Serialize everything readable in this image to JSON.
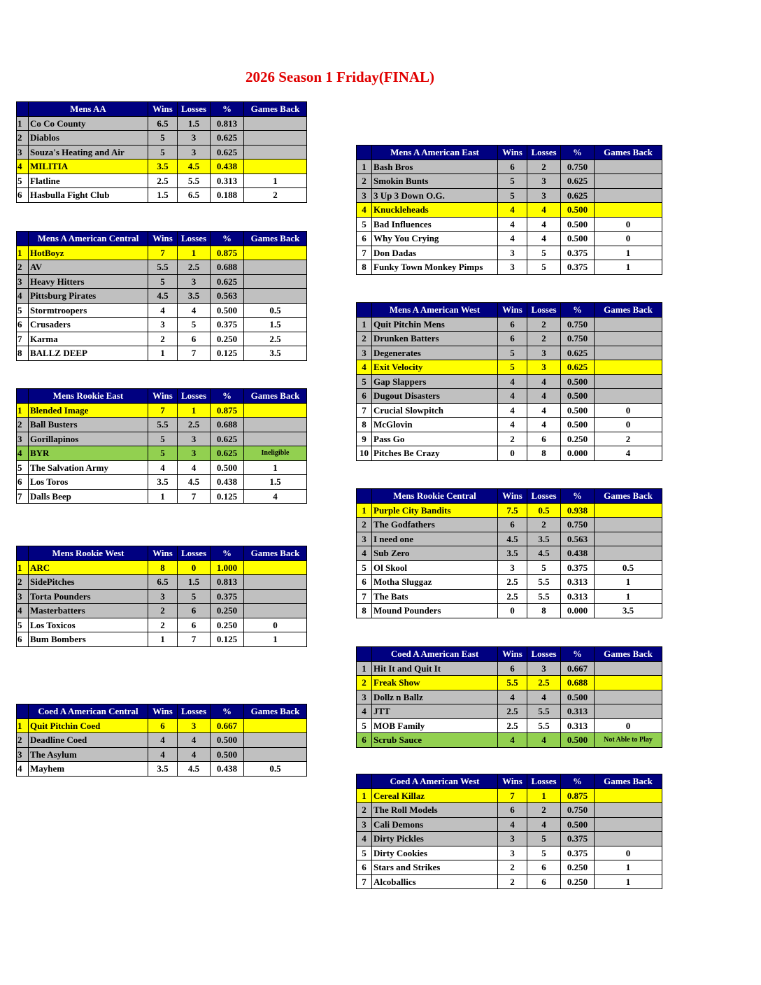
{
  "title": "2026 Season 1 Friday(FINAL)",
  "colors": {
    "header": "#000080",
    "gray": "#c0c0c0",
    "yellow": "#ffff00",
    "green": "#92d050",
    "title": "#e00000"
  },
  "columns": {
    "wins": "Wins",
    "losses": "Losses",
    "pct": "%",
    "gb": "Games Back"
  },
  "tables": [
    {
      "side": "L",
      "name": "Mens AA",
      "rows": [
        [
          "1",
          "Co Co County",
          "6.5",
          "1.5",
          "0.813",
          "",
          "g"
        ],
        [
          "2",
          "Diablos",
          "5",
          "3",
          "0.625",
          "",
          "g"
        ],
        [
          "3",
          "Souza's Heating and Air",
          "5",
          "3",
          "0.625",
          "",
          "g"
        ],
        [
          "4",
          "MILITIA",
          "3.5",
          "4.5",
          "0.438",
          "",
          "y"
        ],
        [
          "5",
          "Flatline",
          "2.5",
          "5.5",
          "0.313",
          "1",
          "w"
        ],
        [
          "6",
          "Hasbulla Fight Club",
          "1.5",
          "6.5",
          "0.188",
          "2",
          "w"
        ]
      ]
    },
    {
      "side": "L",
      "name": "Mens A American Central",
      "rows": [
        [
          "1",
          "HotBoyz",
          "7",
          "1",
          "0.875",
          "",
          "y"
        ],
        [
          "2",
          "AV",
          "5.5",
          "2.5",
          "0.688",
          "",
          "g"
        ],
        [
          "3",
          "Heavy Hitters",
          "5",
          "3",
          "0.625",
          "",
          "g"
        ],
        [
          "4",
          "Pittsburg Pirates",
          "4.5",
          "3.5",
          "0.563",
          "",
          "g"
        ],
        [
          "5",
          "Stormtroopers",
          "4",
          "4",
          "0.500",
          "0.5",
          "w"
        ],
        [
          "6",
          "Crusaders",
          "3",
          "5",
          "0.375",
          "1.5",
          "w"
        ],
        [
          "7",
          "Karma",
          "2",
          "6",
          "0.250",
          "2.5",
          "w"
        ],
        [
          "8",
          "BALLZ DEEP",
          "1",
          "7",
          "0.125",
          "3.5",
          "w"
        ]
      ]
    },
    {
      "side": "L",
      "name": "Mens Rookie East",
      "rows": [
        [
          "1",
          "Blended Image",
          "7",
          "1",
          "0.875",
          "",
          "y"
        ],
        [
          "2",
          "Ball Busters",
          "5.5",
          "2.5",
          "0.688",
          "",
          "g"
        ],
        [
          "3",
          "Gorillapinos",
          "5",
          "3",
          "0.625",
          "",
          "g"
        ],
        [
          "4",
          "BYR",
          "5",
          "3",
          "0.625",
          "Ineligible",
          "n"
        ],
        [
          "5",
          "The Salvation Army",
          "4",
          "4",
          "0.500",
          "1",
          "w"
        ],
        [
          "6",
          "Los Toros",
          "3.5",
          "4.5",
          "0.438",
          "1.5",
          "w"
        ],
        [
          "7",
          "Dalls Beep",
          "1",
          "7",
          "0.125",
          "4",
          "w"
        ]
      ]
    },
    {
      "side": "L",
      "name": "Mens Rookie West",
      "rows": [
        [
          "1",
          "ARC",
          "8",
          "0",
          "1.000",
          "",
          "y"
        ],
        [
          "2",
          "SidePitches",
          "6.5",
          "1.5",
          "0.813",
          "",
          "g"
        ],
        [
          "3",
          "Torta Pounders",
          "3",
          "5",
          "0.375",
          "",
          "g"
        ],
        [
          "4",
          "Masterbatters",
          "2",
          "6",
          "0.250",
          "",
          "g"
        ],
        [
          "5",
          "Los Toxicos",
          "2",
          "6",
          "0.250",
          "0",
          "w"
        ],
        [
          "6",
          "Bum Bombers",
          "1",
          "7",
          "0.125",
          "1",
          "w"
        ]
      ]
    },
    {
      "side": "L",
      "name": "Coed A American Central",
      "rows": [
        [
          "1",
          "Quit Pitchin Coed",
          "6",
          "3",
          "0.667",
          "",
          "y"
        ],
        [
          "2",
          "Deadline Coed",
          "4",
          "4",
          "0.500",
          "",
          "g"
        ],
        [
          "3",
          "The Asylum",
          "4",
          "4",
          "0.500",
          "",
          "g"
        ],
        [
          "4",
          "Mayhem",
          "3.5",
          "4.5",
          "0.438",
          "0.5",
          "w"
        ]
      ]
    },
    {
      "side": "R",
      "name": "Mens A American East",
      "rows": [
        [
          "1",
          "Bash Bros",
          "6",
          "2",
          "0.750",
          "",
          "g"
        ],
        [
          "2",
          "Smokin Bunts",
          "5",
          "3",
          "0.625",
          "",
          "g"
        ],
        [
          "3",
          "3 Up 3 Down O.G.",
          "5",
          "3",
          "0.625",
          "",
          "g"
        ],
        [
          "4",
          "Knuckleheads",
          "4",
          "4",
          "0.500",
          "",
          "y"
        ],
        [
          "5",
          "Bad Influences",
          "4",
          "4",
          "0.500",
          "0",
          "w"
        ],
        [
          "6",
          "Why You Crying",
          "4",
          "4",
          "0.500",
          "0",
          "w"
        ],
        [
          "7",
          "Don Dadas",
          "3",
          "5",
          "0.375",
          "1",
          "w"
        ],
        [
          "8",
          "Funky Town Monkey Pimps",
          "3",
          "5",
          "0.375",
          "1",
          "w"
        ]
      ]
    },
    {
      "side": "R",
      "name": "Mens A American West",
      "rows": [
        [
          "1",
          "Quit Pitchin Mens",
          "6",
          "2",
          "0.750",
          "",
          "g"
        ],
        [
          "2",
          "Drunken Batters",
          "6",
          "2",
          "0.750",
          "",
          "g"
        ],
        [
          "3",
          "Degenerates",
          "5",
          "3",
          "0.625",
          "",
          "g"
        ],
        [
          "4",
          "Exit Velocity",
          "5",
          "3",
          "0.625",
          "",
          "y"
        ],
        [
          "5",
          "Gap Slappers",
          "4",
          "4",
          "0.500",
          "",
          "g"
        ],
        [
          "6",
          "Dugout Disasters",
          "4",
          "4",
          "0.500",
          "",
          "g"
        ],
        [
          "7",
          "Crucial Slowpitch",
          "4",
          "4",
          "0.500",
          "0",
          "w"
        ],
        [
          "8",
          "McGlovin",
          "4",
          "4",
          "0.500",
          "0",
          "w"
        ],
        [
          "9",
          "Pass Go",
          "2",
          "6",
          "0.250",
          "2",
          "w"
        ],
        [
          "10",
          "Pitches Be Crazy",
          "0",
          "8",
          "0.000",
          "4",
          "w"
        ]
      ]
    },
    {
      "side": "R",
      "name": "Mens Rookie Central",
      "rows": [
        [
          "1",
          "Purple City Bandits",
          "7.5",
          "0.5",
          "0.938",
          "",
          "y"
        ],
        [
          "2",
          "The Godfathers",
          "6",
          "2",
          "0.750",
          "",
          "g"
        ],
        [
          "3",
          "I need one",
          "4.5",
          "3.5",
          "0.563",
          "",
          "g"
        ],
        [
          "4",
          "Sub Zero",
          "3.5",
          "4.5",
          "0.438",
          "",
          "g"
        ],
        [
          "5",
          "Ol Skool",
          "3",
          "5",
          "0.375",
          "0.5",
          "w"
        ],
        [
          "6",
          "Motha Sluggaz",
          "2.5",
          "5.5",
          "0.313",
          "1",
          "w"
        ],
        [
          "7",
          "The Bats",
          "2.5",
          "5.5",
          "0.313",
          "1",
          "w"
        ],
        [
          "8",
          "Mound Pounders",
          "0",
          "8",
          "0.000",
          "3.5",
          "w"
        ]
      ]
    },
    {
      "side": "R",
      "name": "Coed A American East",
      "rows": [
        [
          "1",
          "Hit It and Quit It",
          "6",
          "3",
          "0.667",
          "",
          "g"
        ],
        [
          "2",
          "Freak Show",
          "5.5",
          "2.5",
          "0.688",
          "",
          "y"
        ],
        [
          "3",
          "Dollz n Ballz",
          "4",
          "4",
          "0.500",
          "",
          "g"
        ],
        [
          "4",
          "JTT",
          "2.5",
          "5.5",
          "0.313",
          "",
          "g"
        ],
        [
          "5",
          "MOB Family",
          "2.5",
          "5.5",
          "0.313",
          "0",
          "w"
        ],
        [
          "6",
          "Scrub Sauce",
          "4",
          "4",
          "0.500",
          "Not Able to Play",
          "n"
        ]
      ]
    },
    {
      "side": "R",
      "name": "Coed A American West",
      "rows": [
        [
          "1",
          "Cereal Killaz",
          "7",
          "1",
          "0.875",
          "",
          "y"
        ],
        [
          "2",
          "The Roll Models",
          "6",
          "2",
          "0.750",
          "",
          "g"
        ],
        [
          "3",
          "Cali Demons",
          "4",
          "4",
          "0.500",
          "",
          "g"
        ],
        [
          "4",
          "Dirty Pickles",
          "3",
          "5",
          "0.375",
          "",
          "g"
        ],
        [
          "5",
          "Dirty Cookies",
          "3",
          "5",
          "0.375",
          "0",
          "w"
        ],
        [
          "6",
          "Stars and Strikes",
          "2",
          "6",
          "0.250",
          "1",
          "w"
        ],
        [
          "7",
          "Alcoballics",
          "2",
          "6",
          "0.250",
          "1",
          "w"
        ]
      ]
    }
  ]
}
